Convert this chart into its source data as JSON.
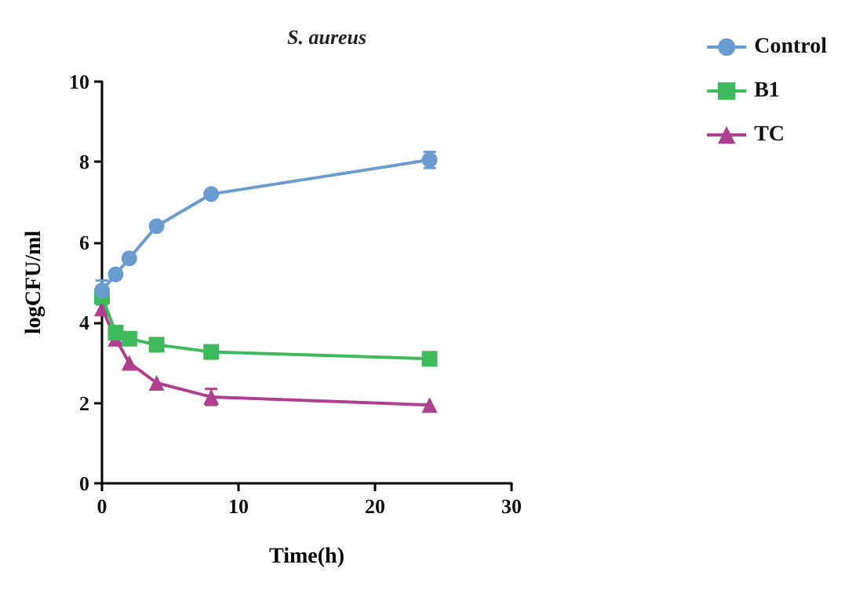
{
  "chart_data": {
    "type": "line",
    "title": "S. aureus",
    "xlabel": "Time(h)",
    "ylabel": "logCFU/ml",
    "x": [
      0,
      1,
      2,
      4,
      8,
      24
    ],
    "xlim": [
      0,
      30
    ],
    "xticks": [
      0,
      10,
      20,
      30
    ],
    "ylim": [
      0,
      10
    ],
    "yticks": [
      0,
      2,
      4,
      6,
      8,
      10
    ],
    "grid": false,
    "legend": "top right",
    "line_style": "solid",
    "series": [
      {
        "name": "Control",
        "color": "#6a9bd1",
        "marker": "circle",
        "values": [
          4.8,
          5.2,
          5.6,
          6.4,
          7.2,
          8.05
        ],
        "errors": [
          0.25,
          null,
          null,
          null,
          null,
          0.2
        ]
      },
      {
        "name": "B1",
        "color": "#3dbb5c",
        "marker": "square",
        "values": [
          4.65,
          3.75,
          3.6,
          3.45,
          3.27,
          3.1
        ],
        "errors": [
          0.2,
          null,
          null,
          null,
          null,
          null
        ]
      },
      {
        "name": "TC",
        "color": "#b0408f",
        "marker": "triangle",
        "values": [
          4.35,
          3.6,
          3.0,
          2.5,
          2.15,
          1.95
        ],
        "errors": [
          null,
          null,
          null,
          null,
          0.2,
          null
        ]
      }
    ]
  }
}
